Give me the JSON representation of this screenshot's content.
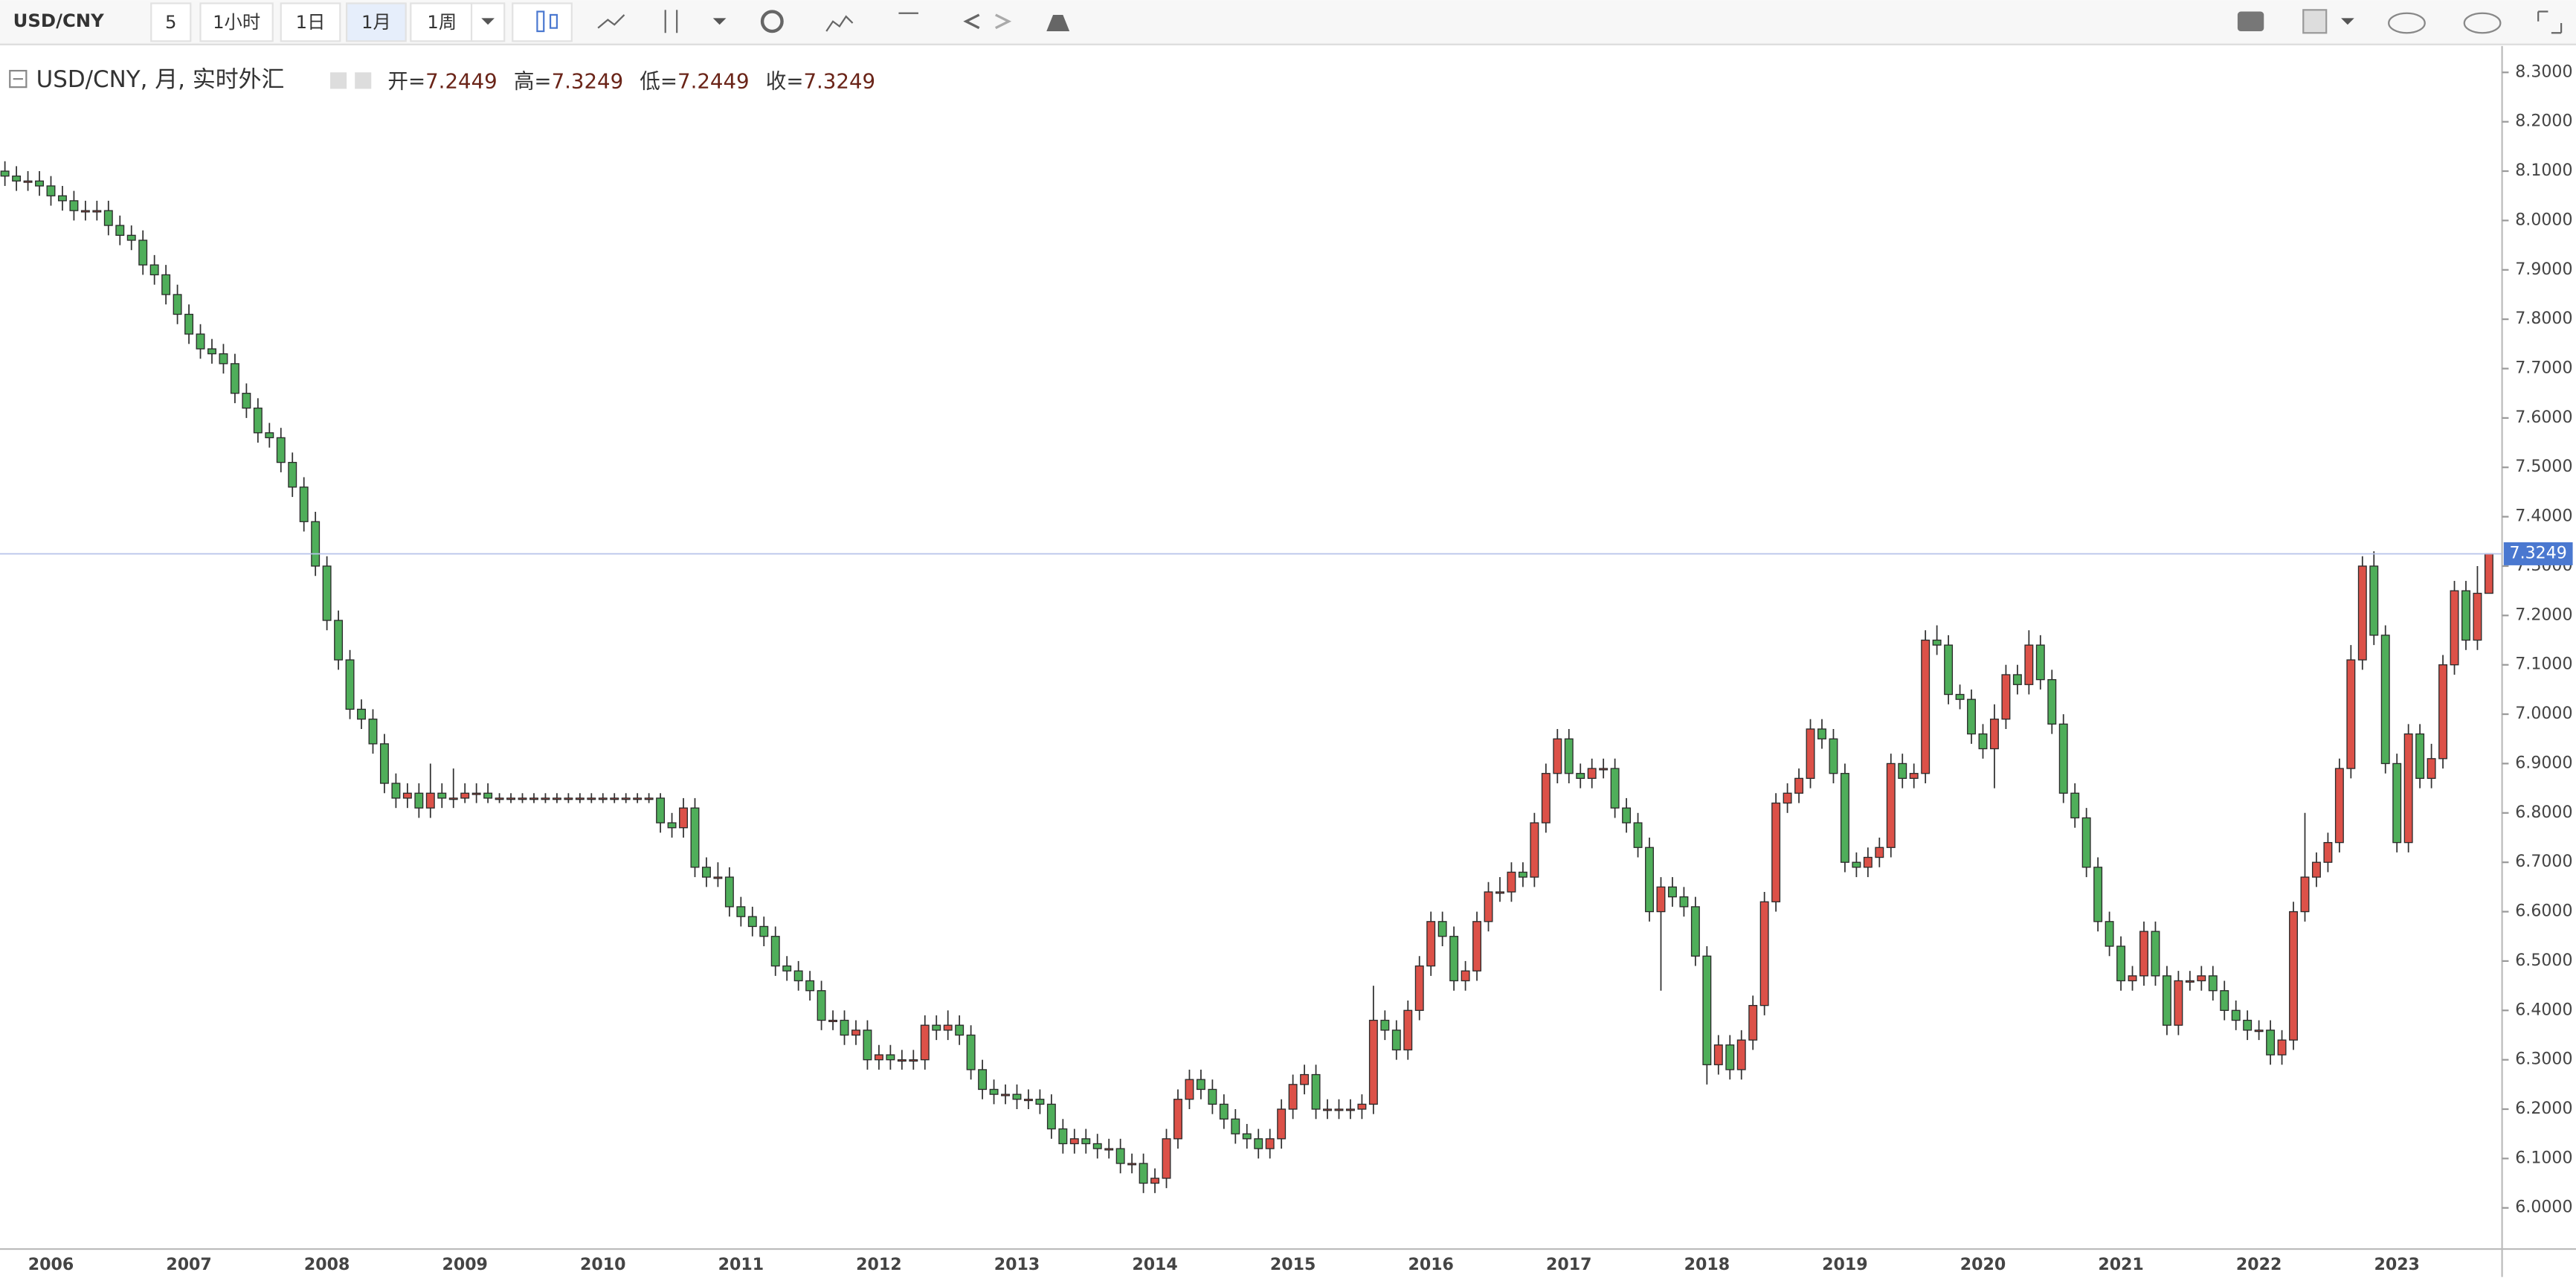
{
  "toolbar": {
    "symbol": "USD/CNY",
    "intervals": [
      "5",
      "1小时",
      "1日",
      "1月",
      "1周"
    ],
    "active_interval": 3
  },
  "chart_data": {
    "type": "candlestick",
    "title": "USD/CNY, 月, 实时外汇",
    "legend_labels": [
      "开=",
      "高=",
      "低=",
      "收="
    ],
    "categories": [
      null,
      null,
      null,
      null,
      "2006",
      null,
      null,
      null,
      null,
      null,
      null,
      null,
      null,
      null,
      null,
      null,
      "2007",
      null,
      null,
      null,
      null,
      null,
      null,
      null,
      null,
      null,
      null,
      null,
      "2008",
      null,
      null,
      null,
      null,
      null,
      null,
      null,
      null,
      null,
      null,
      null,
      "2009",
      null,
      null,
      null,
      null,
      null,
      null,
      null,
      null,
      null,
      null,
      null,
      "2010",
      null,
      null,
      null,
      null,
      null,
      null,
      null,
      null,
      null,
      null,
      null,
      "2011",
      null,
      null,
      null,
      null,
      null,
      null,
      null,
      null,
      null,
      null,
      null,
      "2012",
      null,
      null,
      null,
      null,
      null,
      null,
      null,
      null,
      null,
      null,
      null,
      "2013",
      null,
      null,
      null,
      null,
      null,
      null,
      null,
      null,
      null,
      null,
      null,
      "2014",
      null,
      null,
      null,
      null,
      null,
      null,
      null,
      null,
      null,
      null,
      null,
      "2015",
      null,
      null,
      null,
      null,
      null,
      null,
      null,
      null,
      null,
      null,
      null,
      "2016",
      null,
      null,
      null,
      null,
      null,
      null,
      null,
      null,
      null,
      null,
      null,
      "2017",
      null,
      null,
      null,
      null,
      null,
      null,
      null,
      null,
      null,
      null,
      null,
      "2018",
      null,
      null,
      null,
      null,
      null,
      null,
      null,
      null,
      null,
      null,
      null,
      "2019",
      null,
      null,
      null,
      null,
      null,
      null,
      null,
      null,
      null,
      null,
      null,
      "2020",
      null,
      null,
      null,
      null,
      null,
      null,
      null,
      null,
      null,
      null,
      null,
      "2021",
      null,
      null,
      null,
      null,
      null,
      null,
      null,
      null,
      null,
      null,
      null,
      "2022",
      null,
      null,
      null,
      null,
      null,
      null,
      null,
      null,
      null,
      null,
      null,
      "2023",
      null,
      null,
      null,
      null,
      null,
      null,
      null,
      null
    ],
    "open": [
      8.1,
      8.09,
      8.08,
      8.08,
      8.07,
      8.05,
      8.04,
      8.02,
      8.02,
      8.02,
      7.99,
      7.97,
      7.96,
      7.91,
      7.89,
      7.85,
      7.81,
      7.77,
      7.74,
      7.73,
      7.71,
      7.65,
      7.62,
      7.57,
      7.56,
      7.51,
      7.46,
      7.39,
      7.3,
      7.19,
      7.11,
      7.01,
      6.99,
      6.94,
      6.86,
      6.83,
      6.84,
      6.81,
      6.84,
      6.83,
      6.83,
      6.84,
      6.84,
      6.83,
      6.83,
      6.83,
      6.83,
      6.83,
      6.83,
      6.83,
      6.83,
      6.83,
      6.83,
      6.83,
      6.83,
      6.83,
      6.83,
      6.83,
      6.78,
      6.77,
      6.81,
      6.69,
      6.67,
      6.67,
      6.61,
      6.59,
      6.57,
      6.55,
      6.49,
      6.48,
      6.46,
      6.44,
      6.38,
      6.38,
      6.35,
      6.36,
      6.3,
      6.31,
      6.3,
      6.3,
      6.3,
      6.37,
      6.36,
      6.37,
      6.35,
      6.28,
      6.24,
      6.23,
      6.23,
      6.22,
      6.22,
      6.21,
      6.16,
      6.13,
      6.14,
      6.13,
      6.12,
      6.12,
      6.09,
      6.09,
      6.05,
      6.06,
      6.14,
      6.22,
      6.26,
      6.24,
      6.21,
      6.18,
      6.15,
      6.14,
      6.12,
      6.14,
      6.2,
      6.25,
      6.27,
      6.2,
      6.2,
      6.2,
      6.2,
      6.21,
      6.38,
      6.36,
      6.32,
      6.4,
      6.49,
      6.58,
      6.55,
      6.46,
      6.48,
      6.58,
      6.64,
      6.64,
      6.68,
      6.67,
      6.78,
      6.88,
      6.95,
      6.88,
      6.87,
      6.89,
      6.89,
      6.81,
      6.78,
      6.73,
      6.6,
      6.65,
      6.63,
      6.61,
      6.51,
      6.29,
      6.33,
      6.28,
      6.34,
      6.41,
      6.62,
      6.82,
      6.84,
      6.87,
      6.97,
      6.95,
      6.88,
      6.7,
      6.69,
      6.71,
      6.73,
      6.9,
      6.87,
      6.88,
      7.15,
      7.14,
      7.04,
      7.03,
      6.96,
      6.93,
      6.99,
      7.08,
      7.06,
      7.14,
      7.07,
      6.98,
      6.84,
      6.79,
      6.69,
      6.58,
      6.53,
      6.46,
      6.47,
      6.56,
      6.47,
      6.37,
      6.46,
      6.46,
      6.47,
      6.44,
      6.4,
      6.38,
      6.36,
      6.36,
      6.31,
      6.34,
      6.6,
      6.67,
      6.7,
      6.74,
      6.89,
      7.11,
      7.3,
      7.16,
      6.9,
      6.74,
      6.96,
      6.87,
      6.91,
      7.1,
      7.25,
      7.15,
      7.2449
    ],
    "high": [
      8.12,
      8.11,
      8.1,
      8.1,
      8.09,
      8.07,
      8.06,
      8.04,
      8.04,
      8.04,
      8.01,
      7.99,
      7.98,
      7.93,
      7.91,
      7.87,
      7.83,
      7.79,
      7.76,
      7.75,
      7.73,
      7.67,
      7.64,
      7.59,
      7.58,
      7.53,
      7.48,
      7.41,
      7.32,
      7.21,
      7.13,
      7.03,
      7.01,
      6.96,
      6.88,
      6.86,
      6.86,
      6.9,
      6.86,
      6.89,
      6.86,
      6.86,
      6.86,
      6.84,
      6.84,
      6.84,
      6.84,
      6.84,
      6.84,
      6.84,
      6.84,
      6.84,
      6.84,
      6.84,
      6.84,
      6.84,
      6.84,
      6.84,
      6.8,
      6.83,
      6.83,
      6.71,
      6.7,
      6.69,
      6.63,
      6.61,
      6.59,
      6.57,
      6.51,
      6.5,
      6.48,
      6.46,
      6.4,
      6.4,
      6.38,
      6.38,
      6.33,
      6.33,
      6.32,
      6.32,
      6.39,
      6.39,
      6.4,
      6.39,
      6.37,
      6.3,
      6.26,
      6.25,
      6.25,
      6.24,
      6.24,
      6.23,
      6.18,
      6.16,
      6.16,
      6.15,
      6.14,
      6.14,
      6.11,
      6.11,
      6.08,
      6.16,
      6.24,
      6.28,
      6.28,
      6.26,
      6.23,
      6.2,
      6.17,
      6.16,
      6.16,
      6.22,
      6.27,
      6.29,
      6.29,
      6.22,
      6.22,
      6.22,
      6.23,
      6.45,
      6.4,
      6.38,
      6.42,
      6.51,
      6.6,
      6.6,
      6.57,
      6.5,
      6.6,
      6.66,
      6.67,
      6.7,
      6.7,
      6.8,
      6.9,
      6.97,
      6.97,
      6.9,
      6.91,
      6.91,
      6.91,
      6.83,
      6.8,
      6.75,
      6.67,
      6.67,
      6.65,
      6.63,
      6.53,
      6.35,
      6.35,
      6.36,
      6.43,
      6.64,
      6.84,
      6.86,
      6.89,
      6.99,
      6.99,
      6.97,
      6.9,
      6.72,
      6.73,
      6.75,
      6.92,
      6.92,
      6.9,
      7.17,
      7.18,
      7.16,
      7.06,
      7.05,
      6.98,
      7.02,
      7.1,
      7.1,
      7.17,
      7.16,
      7.09,
      7.0,
      6.86,
      6.81,
      6.71,
      6.6,
      6.55,
      6.49,
      6.58,
      6.58,
      6.49,
      6.48,
      6.48,
      6.49,
      6.49,
      6.46,
      6.42,
      6.4,
      6.38,
      6.38,
      6.36,
      6.62,
      6.8,
      6.72,
      6.76,
      6.91,
      7.14,
      7.32,
      7.33,
      7.18,
      6.92,
      6.98,
      6.98,
      6.94,
      7.12,
      7.27,
      7.27,
      7.3,
      7.3249
    ],
    "low": [
      8.07,
      8.06,
      8.06,
      8.05,
      8.03,
      8.02,
      8.0,
      8.0,
      8.0,
      7.97,
      7.95,
      7.94,
      7.89,
      7.87,
      7.83,
      7.79,
      7.75,
      7.72,
      7.71,
      7.69,
      7.63,
      7.6,
      7.55,
      7.54,
      7.49,
      7.44,
      7.37,
      7.28,
      7.17,
      7.09,
      6.99,
      6.97,
      6.92,
      6.84,
      6.81,
      6.81,
      6.79,
      6.79,
      6.81,
      6.81,
      6.82,
      6.82,
      6.82,
      6.82,
      6.82,
      6.82,
      6.82,
      6.82,
      6.82,
      6.82,
      6.82,
      6.82,
      6.82,
      6.82,
      6.82,
      6.82,
      6.82,
      6.76,
      6.75,
      6.75,
      6.67,
      6.65,
      6.65,
      6.59,
      6.57,
      6.55,
      6.53,
      6.47,
      6.46,
      6.44,
      6.42,
      6.36,
      6.36,
      6.33,
      6.33,
      6.28,
      6.28,
      6.28,
      6.28,
      6.28,
      6.28,
      6.34,
      6.34,
      6.33,
      6.26,
      6.22,
      6.21,
      6.21,
      6.2,
      6.2,
      6.19,
      6.14,
      6.11,
      6.11,
      6.11,
      6.1,
      6.1,
      6.07,
      6.07,
      6.03,
      6.03,
      6.04,
      6.12,
      6.2,
      6.22,
      6.19,
      6.16,
      6.13,
      6.12,
      6.1,
      6.1,
      6.12,
      6.18,
      6.23,
      6.18,
      6.18,
      6.18,
      6.18,
      6.18,
      6.19,
      6.34,
      6.3,
      6.3,
      6.38,
      6.47,
      6.53,
      6.44,
      6.44,
      6.46,
      6.56,
      6.62,
      6.62,
      6.65,
      6.65,
      6.76,
      6.86,
      6.86,
      6.85,
      6.85,
      6.87,
      6.79,
      6.76,
      6.71,
      6.58,
      6.44,
      6.61,
      6.59,
      6.49,
      6.25,
      6.27,
      6.26,
      6.26,
      6.32,
      6.39,
      6.6,
      6.8,
      6.82,
      6.85,
      6.93,
      6.86,
      6.68,
      6.67,
      6.67,
      6.69,
      6.71,
      6.85,
      6.85,
      6.86,
      7.12,
      7.02,
      7.01,
      6.94,
      6.91,
      6.85,
      6.97,
      7.04,
      7.04,
      7.05,
      6.96,
      6.82,
      6.77,
      6.67,
      6.56,
      6.51,
      6.44,
      6.44,
      6.45,
      6.45,
      6.35,
      6.35,
      6.44,
      6.44,
      6.42,
      6.38,
      6.36,
      6.34,
      6.34,
      6.29,
      6.29,
      6.32,
      6.58,
      6.65,
      6.68,
      6.72,
      6.87,
      7.09,
      7.14,
      6.88,
      6.72,
      6.72,
      6.85,
      6.85,
      6.89,
      7.08,
      7.13,
      7.13,
      7.2449
    ],
    "close": [
      8.09,
      8.08,
      8.08,
      8.07,
      8.05,
      8.04,
      8.02,
      8.02,
      8.02,
      7.99,
      7.97,
      7.96,
      7.91,
      7.89,
      7.85,
      7.81,
      7.77,
      7.74,
      7.73,
      7.71,
      7.65,
      7.62,
      7.57,
      7.56,
      7.51,
      7.46,
      7.39,
      7.3,
      7.19,
      7.11,
      7.01,
      6.99,
      6.94,
      6.86,
      6.83,
      6.84,
      6.81,
      6.84,
      6.83,
      6.83,
      6.84,
      6.84,
      6.83,
      6.83,
      6.83,
      6.83,
      6.83,
      6.83,
      6.83,
      6.83,
      6.83,
      6.83,
      6.83,
      6.83,
      6.83,
      6.83,
      6.83,
      6.78,
      6.77,
      6.81,
      6.69,
      6.67,
      6.67,
      6.61,
      6.59,
      6.57,
      6.55,
      6.49,
      6.48,
      6.46,
      6.44,
      6.38,
      6.38,
      6.35,
      6.36,
      6.3,
      6.31,
      6.3,
      6.3,
      6.3,
      6.37,
      6.36,
      6.37,
      6.35,
      6.28,
      6.24,
      6.23,
      6.23,
      6.22,
      6.22,
      6.21,
      6.16,
      6.13,
      6.14,
      6.13,
      6.12,
      6.12,
      6.09,
      6.09,
      6.05,
      6.06,
      6.14,
      6.22,
      6.26,
      6.24,
      6.21,
      6.18,
      6.15,
      6.14,
      6.12,
      6.14,
      6.2,
      6.25,
      6.27,
      6.2,
      6.2,
      6.2,
      6.2,
      6.21,
      6.38,
      6.36,
      6.32,
      6.4,
      6.49,
      6.58,
      6.55,
      6.46,
      6.48,
      6.58,
      6.64,
      6.64,
      6.68,
      6.67,
      6.78,
      6.88,
      6.95,
      6.88,
      6.87,
      6.89,
      6.89,
      6.81,
      6.78,
      6.73,
      6.6,
      6.65,
      6.63,
      6.61,
      6.51,
      6.29,
      6.33,
      6.28,
      6.34,
      6.41,
      6.62,
      6.82,
      6.84,
      6.87,
      6.97,
      6.95,
      6.88,
      6.7,
      6.69,
      6.71,
      6.73,
      6.9,
      6.87,
      6.88,
      7.15,
      7.14,
      7.04,
      7.03,
      6.96,
      6.93,
      6.99,
      7.08,
      7.06,
      7.14,
      7.07,
      6.98,
      6.84,
      6.79,
      6.69,
      6.58,
      6.53,
      6.46,
      6.47,
      6.56,
      6.47,
      6.37,
      6.46,
      6.46,
      6.47,
      6.44,
      6.4,
      6.38,
      6.36,
      6.36,
      6.31,
      6.34,
      6.6,
      6.67,
      6.7,
      6.74,
      6.89,
      7.11,
      7.3,
      7.16,
      6.9,
      6.74,
      6.96,
      6.87,
      6.91,
      7.1,
      7.25,
      7.15,
      7.2449,
      7.3249
    ],
    "up_color": "#dc5148",
    "down_color": "#4fae5a",
    "last_price_color": "#4a78d0",
    "ylim": [
      5.92,
      8.34
    ],
    "yticks": [
      {
        "value": 6.0,
        "label": "6.0000"
      },
      {
        "value": 6.1,
        "label": "6.1000"
      },
      {
        "value": 6.2,
        "label": "6.2000"
      },
      {
        "value": 6.3,
        "label": "6.3000"
      },
      {
        "value": 6.4,
        "label": "6.4000"
      },
      {
        "value": 6.5,
        "label": "6.5000"
      },
      {
        "value": 6.6,
        "label": "6.6000"
      },
      {
        "value": 6.7,
        "label": "6.7000"
      },
      {
        "value": 6.8,
        "label": "6.8000"
      },
      {
        "value": 6.9,
        "label": "6.9000"
      },
      {
        "value": 7.0,
        "label": "7.0000"
      },
      {
        "value": 7.1,
        "label": "7.1000"
      },
      {
        "value": 7.2,
        "label": "7.2000"
      },
      {
        "value": 7.3,
        "label": "7.3000"
      },
      {
        "value": 7.4,
        "label": "7.4000"
      },
      {
        "value": 7.5,
        "label": "7.5000"
      },
      {
        "value": 7.6,
        "label": "7.6000"
      },
      {
        "value": 7.7,
        "label": "7.7000"
      },
      {
        "value": 7.8,
        "label": "7.8000"
      },
      {
        "value": 7.9,
        "label": "7.9000"
      },
      {
        "value": 8.0,
        "label": "8.0000"
      },
      {
        "value": 8.1,
        "label": "8.1000"
      },
      {
        "value": 8.2,
        "label": "8.2000"
      },
      {
        "value": 8.3,
        "label": "8.3000"
      }
    ]
  }
}
